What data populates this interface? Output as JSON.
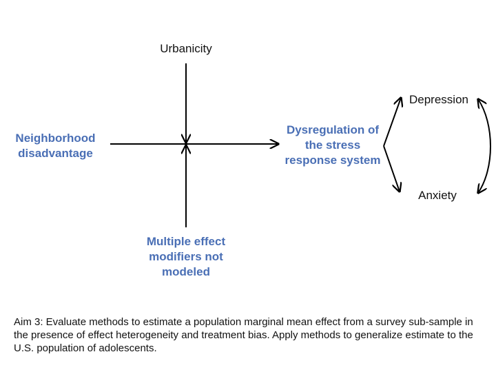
{
  "nodes": {
    "urbanicity": "Urbanicity",
    "neighborhood_line1": "Neighborhood",
    "neighborhood_line2": "disadvantage",
    "dysregulation_line1": "Dysregulation of",
    "dysregulation_line2": "the stress",
    "dysregulation_line3": "response system",
    "depression": "Depression",
    "anxiety": "Anxiety",
    "modifiers_line1": "Multiple effect",
    "modifiers_line2": "modifiers not",
    "modifiers_line3": "modeled"
  },
  "caption": "Aim 3: Evaluate methods to estimate a population marginal mean effect from a survey sub-sample in the presence of effect heterogeneity and treatment bias. Apply methods to generalize estimate to the U.S. population of adolescents.",
  "colors": {
    "exposure_outcome_text": "#4a6fb5",
    "modifier_text": "#4a6fb5",
    "line": "#000000"
  }
}
